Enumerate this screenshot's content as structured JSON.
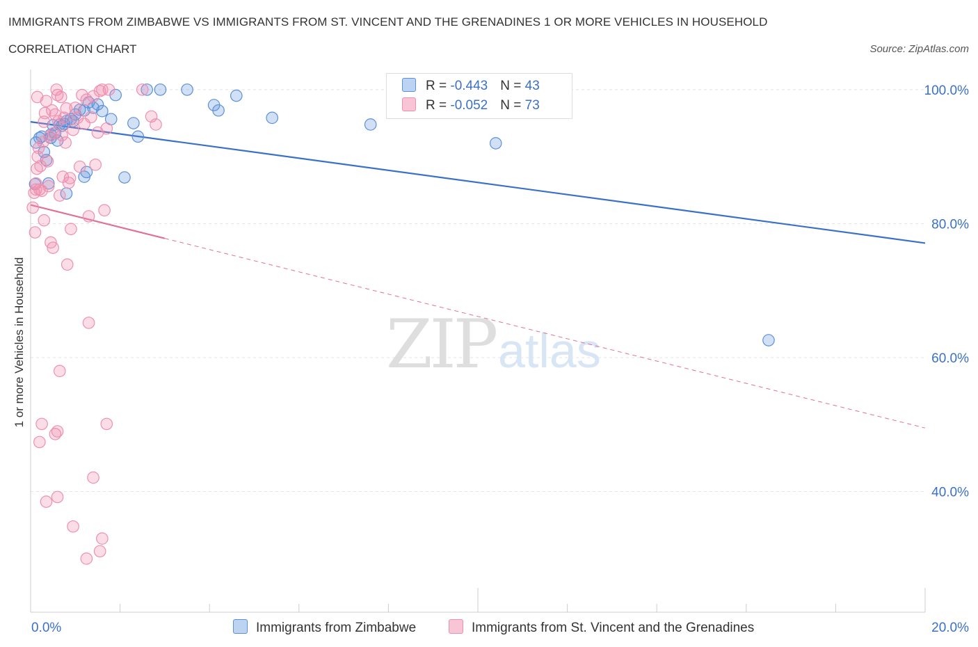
{
  "title": "IMMIGRANTS FROM ZIMBABWE VS IMMIGRANTS FROM ST. VINCENT AND THE GRENADINES 1 OR MORE VEHICLES IN HOUSEHOLD",
  "subtitle": "CORRELATION CHART",
  "source": "Source: ZipAtlas.com",
  "watermark": {
    "zip": "ZIP",
    "atlas": "atlas"
  },
  "stats": [
    {
      "r_label": "R = ",
      "r_value": "-0.443",
      "n_label": "N = ",
      "n_value": "43"
    },
    {
      "r_label": "R = ",
      "r_value": "-0.052",
      "n_label": "N = ",
      "n_value": "73"
    }
  ],
  "legend": [
    "Immigrants from Zimbabwe",
    "Immigrants from St. Vincent and the Grenadines"
  ],
  "chart_data": {
    "type": "scatter",
    "title": "IMMIGRANTS FROM ZIMBABWE VS IMMIGRANTS FROM ST. VINCENT AND THE GRENADINES 1 OR MORE VEHICLES IN HOUSEHOLD",
    "xlabel": "",
    "ylabel": "1 or more Vehicles in Household",
    "xlim": [
      0,
      20
    ],
    "ylim": [
      22,
      103
    ],
    "x_tick_labels": [
      {
        "value": 0,
        "label": "0.0%"
      },
      {
        "value": 20,
        "label": "20.0%"
      }
    ],
    "y_tick_labels": [
      {
        "value": 100,
        "label": "100.0%"
      },
      {
        "value": 80,
        "label": "80.0%"
      },
      {
        "value": 60,
        "label": "60.0%"
      },
      {
        "value": 40,
        "label": "40.0%"
      }
    ],
    "colors": {
      "zimbabwe": "#5b8fd9",
      "stvincent": "#ef8fae",
      "zim_line": "#3a70c8",
      "svg_line": "#e07099",
      "axis_text": "#3a70c8"
    },
    "series": [
      {
        "name": "Immigrants from Zimbabwe",
        "color": "#5b8fd9",
        "points": [
          [
            0.1,
            85.9
          ],
          [
            0.12,
            92.1
          ],
          [
            0.2,
            92.8
          ],
          [
            0.25,
            93.0
          ],
          [
            0.3,
            90.7
          ],
          [
            0.35,
            89.5
          ],
          [
            0.4,
            86.0
          ],
          [
            0.45,
            93.3
          ],
          [
            0.5,
            94.7
          ],
          [
            0.55,
            93.5
          ],
          [
            0.6,
            92.4
          ],
          [
            0.65,
            94.8
          ],
          [
            0.7,
            94.6
          ],
          [
            0.75,
            94.9
          ],
          [
            0.8,
            95.3
          ],
          [
            0.9,
            95.6
          ],
          [
            1.0,
            96.3
          ],
          [
            1.1,
            97.0
          ],
          [
            1.2,
            96.9
          ],
          [
            1.3,
            98.1
          ],
          [
            1.4,
            97.3
          ],
          [
            1.5,
            97.8
          ],
          [
            1.6,
            96.8
          ],
          [
            1.8,
            95.6
          ],
          [
            1.9,
            99.2
          ],
          [
            2.1,
            86.9
          ],
          [
            2.3,
            95.0
          ],
          [
            2.4,
            93.0
          ],
          [
            2.6,
            100.0
          ],
          [
            2.9,
            100.0
          ],
          [
            3.5,
            100.0
          ],
          [
            4.1,
            97.7
          ],
          [
            4.2,
            96.9
          ],
          [
            4.6,
            99.1
          ],
          [
            5.4,
            95.8
          ],
          [
            7.6,
            94.8
          ],
          [
            10.4,
            92.0
          ],
          [
            16.5,
            62.6
          ],
          [
            0.8,
            84.5
          ],
          [
            1.2,
            87.0
          ],
          [
            1.25,
            87.7
          ],
          [
            0.45,
            92.8
          ],
          [
            0.95,
            95.3
          ]
        ]
      },
      {
        "name": "Immigrants from St. Vincent and the Grenadines",
        "color": "#ef8fae",
        "points": [
          [
            0.05,
            82.4
          ],
          [
            0.08,
            84.6
          ],
          [
            0.1,
            78.7
          ],
          [
            0.12,
            86.0
          ],
          [
            0.14,
            88.2
          ],
          [
            0.16,
            90.0
          ],
          [
            0.18,
            91.3
          ],
          [
            0.2,
            85.1
          ],
          [
            0.22,
            88.6
          ],
          [
            0.25,
            84.9
          ],
          [
            0.28,
            92.2
          ],
          [
            0.3,
            95.2
          ],
          [
            0.32,
            96.5
          ],
          [
            0.35,
            98.3
          ],
          [
            0.38,
            89.3
          ],
          [
            0.4,
            85.6
          ],
          [
            0.42,
            93.0
          ],
          [
            0.45,
            77.2
          ],
          [
            0.48,
            96.9
          ],
          [
            0.5,
            76.4
          ],
          [
            0.52,
            93.5
          ],
          [
            0.55,
            96.3
          ],
          [
            0.58,
            100.0
          ],
          [
            0.6,
            99.2
          ],
          [
            0.62,
            95.3
          ],
          [
            0.65,
            84.2
          ],
          [
            0.68,
            98.9
          ],
          [
            0.7,
            93.2
          ],
          [
            0.72,
            87.0
          ],
          [
            0.75,
            95.8
          ],
          [
            0.78,
            92.1
          ],
          [
            0.8,
            97.2
          ],
          [
            0.82,
            73.9
          ],
          [
            0.85,
            86.1
          ],
          [
            0.88,
            86.8
          ],
          [
            0.9,
            79.2
          ],
          [
            0.95,
            94.0
          ],
          [
            1.0,
            97.3
          ],
          [
            1.05,
            95.8
          ],
          [
            1.1,
            88.5
          ],
          [
            1.15,
            99.2
          ],
          [
            1.2,
            94.9
          ],
          [
            1.25,
            98.5
          ],
          [
            1.3,
            81.1
          ],
          [
            1.35,
            95.9
          ],
          [
            1.4,
            99.0
          ],
          [
            1.45,
            88.8
          ],
          [
            1.5,
            93.6
          ],
          [
            1.55,
            99.8
          ],
          [
            1.6,
            100.0
          ],
          [
            1.65,
            82.0
          ],
          [
            1.7,
            94.2
          ],
          [
            1.75,
            100.0
          ],
          [
            2.5,
            100.0
          ],
          [
            2.7,
            96.0
          ],
          [
            2.8,
            94.8
          ],
          [
            1.3,
            65.2
          ],
          [
            0.65,
            58.0
          ],
          [
            0.25,
            50.1
          ],
          [
            0.55,
            48.6
          ],
          [
            0.6,
            49.0
          ],
          [
            0.2,
            47.4
          ],
          [
            1.7,
            50.1
          ],
          [
            1.4,
            42.1
          ],
          [
            0.6,
            39.2
          ],
          [
            0.35,
            38.5
          ],
          [
            0.95,
            34.8
          ],
          [
            1.6,
            33.0
          ],
          [
            1.55,
            31.1
          ],
          [
            1.25,
            30.0
          ],
          [
            0.12,
            85.1
          ],
          [
            0.3,
            80.5
          ],
          [
            0.15,
            98.9
          ]
        ]
      }
    ],
    "trendlines": [
      {
        "series": "Immigrants from Zimbabwe",
        "from": [
          0.0,
          95.2
        ],
        "to": [
          20.0,
          77.1
        ],
        "style": "solid"
      },
      {
        "series": "Immigrants from St. Vincent and the Grenadines",
        "from": [
          0.0,
          82.8
        ],
        "to": [
          3.0,
          77.8
        ],
        "style": "solid"
      },
      {
        "series": "Immigrants from St. Vincent and the Grenadines",
        "from": [
          3.0,
          77.8
        ],
        "to": [
          20.0,
          49.5
        ],
        "style": "dashed"
      }
    ]
  }
}
